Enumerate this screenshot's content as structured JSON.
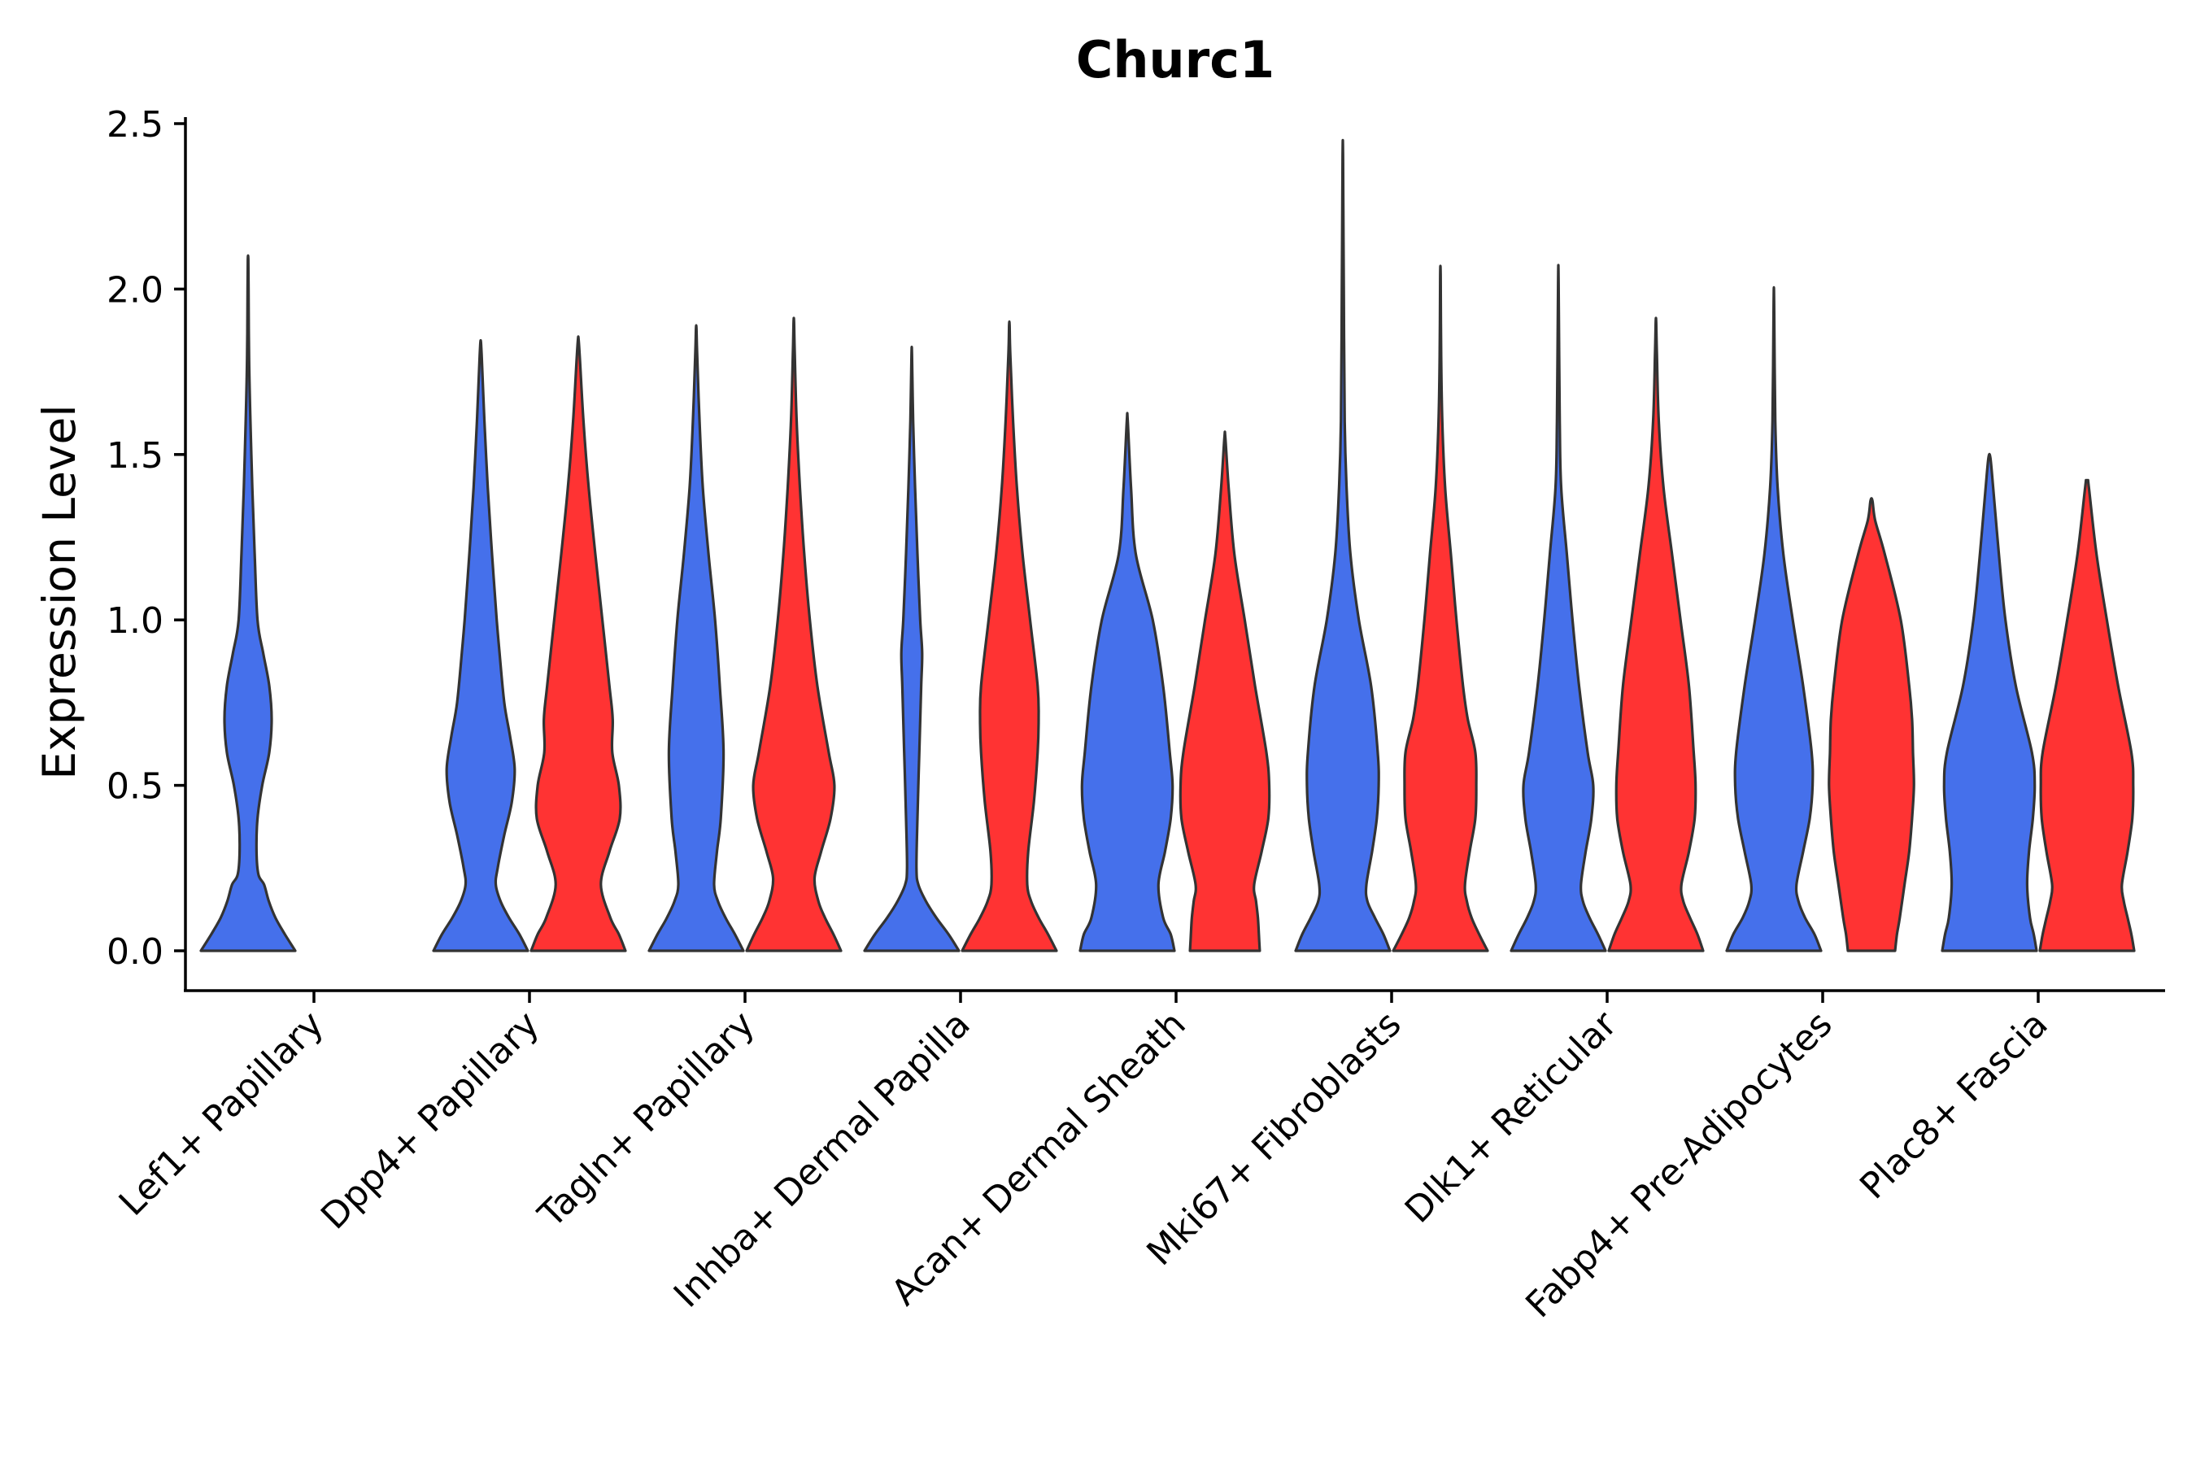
{
  "chart_data": {
    "type": "violin",
    "title": "Churc1",
    "xlabel": "",
    "ylabel": "Expression Level",
    "ylim": [
      -0.12,
      2.6
    ],
    "yticks": [
      0.0,
      0.5,
      1.0,
      1.5,
      2.0,
      2.5
    ],
    "ytick_labels": [
      "0.0",
      "0.5",
      "1.0",
      "1.5",
      "2.0",
      "2.5"
    ],
    "grid": false,
    "legend": "none",
    "split_colors": [
      "#4570EB",
      "#FF3333"
    ],
    "categories": [
      "Lef1+ Papillary",
      "Dpp4+ Papillary",
      "Tagln+ Papillary",
      "Inhba+ Dermal Papilla",
      "Acan+ Dermal Sheath",
      "Mki67+ Fibroblasts",
      "Dlk1+ Reticular",
      "Fabp4+ Pre-Adipocytes",
      "Plac8+ Fascia"
    ],
    "violins": [
      {
        "category": 0,
        "group": 0,
        "color": "#4570EB",
        "profile": [
          [
            0.0,
            1.0
          ],
          [
            0.05,
            0.78
          ],
          [
            0.1,
            0.58
          ],
          [
            0.15,
            0.44
          ],
          [
            0.2,
            0.34
          ],
          [
            0.23,
            0.22
          ],
          [
            0.3,
            0.18
          ],
          [
            0.4,
            0.2
          ],
          [
            0.5,
            0.3
          ],
          [
            0.6,
            0.45
          ],
          [
            0.7,
            0.5
          ],
          [
            0.8,
            0.45
          ],
          [
            0.9,
            0.32
          ],
          [
            1.0,
            0.2
          ],
          [
            1.2,
            0.14
          ],
          [
            1.4,
            0.09
          ],
          [
            1.6,
            0.05
          ],
          [
            1.8,
            0.02
          ],
          [
            2.0,
            0.01
          ],
          [
            2.09,
            0.005
          ]
        ]
      },
      {
        "category": 1,
        "group": 0,
        "color": "#4570EB",
        "profile": [
          [
            0.0,
            1.0
          ],
          [
            0.05,
            0.82
          ],
          [
            0.1,
            0.6
          ],
          [
            0.15,
            0.42
          ],
          [
            0.2,
            0.32
          ],
          [
            0.25,
            0.36
          ],
          [
            0.35,
            0.5
          ],
          [
            0.45,
            0.66
          ],
          [
            0.55,
            0.72
          ],
          [
            0.65,
            0.62
          ],
          [
            0.75,
            0.5
          ],
          [
            0.9,
            0.4
          ],
          [
            1.0,
            0.34
          ],
          [
            1.2,
            0.24
          ],
          [
            1.4,
            0.15
          ],
          [
            1.6,
            0.08
          ],
          [
            1.8,
            0.02
          ],
          [
            1.84,
            0.005
          ]
        ]
      },
      {
        "category": 1,
        "group": 1,
        "color": "#FF3333",
        "profile": [
          [
            0.0,
            1.0
          ],
          [
            0.05,
            0.86
          ],
          [
            0.1,
            0.68
          ],
          [
            0.2,
            0.48
          ],
          [
            0.3,
            0.66
          ],
          [
            0.4,
            0.88
          ],
          [
            0.5,
            0.86
          ],
          [
            0.6,
            0.72
          ],
          [
            0.7,
            0.73
          ],
          [
            0.8,
            0.66
          ],
          [
            1.0,
            0.51
          ],
          [
            1.2,
            0.36
          ],
          [
            1.4,
            0.22
          ],
          [
            1.6,
            0.11
          ],
          [
            1.8,
            0.03
          ],
          [
            1.85,
            0.005
          ]
        ]
      },
      {
        "category": 2,
        "group": 0,
        "color": "#4570EB",
        "profile": [
          [
            0.0,
            1.0
          ],
          [
            0.05,
            0.82
          ],
          [
            0.1,
            0.62
          ],
          [
            0.15,
            0.46
          ],
          [
            0.2,
            0.38
          ],
          [
            0.3,
            0.44
          ],
          [
            0.4,
            0.52
          ],
          [
            0.6,
            0.58
          ],
          [
            0.8,
            0.5
          ],
          [
            1.0,
            0.4
          ],
          [
            1.2,
            0.26
          ],
          [
            1.4,
            0.14
          ],
          [
            1.6,
            0.07
          ],
          [
            1.8,
            0.02
          ],
          [
            1.88,
            0.005
          ]
        ]
      },
      {
        "category": 2,
        "group": 1,
        "color": "#FF3333",
        "profile": [
          [
            0.0,
            1.0
          ],
          [
            0.05,
            0.84
          ],
          [
            0.1,
            0.66
          ],
          [
            0.15,
            0.52
          ],
          [
            0.22,
            0.44
          ],
          [
            0.3,
            0.58
          ],
          [
            0.4,
            0.78
          ],
          [
            0.5,
            0.86
          ],
          [
            0.6,
            0.74
          ],
          [
            0.8,
            0.5
          ],
          [
            1.0,
            0.34
          ],
          [
            1.2,
            0.22
          ],
          [
            1.4,
            0.13
          ],
          [
            1.6,
            0.06
          ],
          [
            1.8,
            0.02
          ],
          [
            1.9,
            0.005
          ]
        ]
      },
      {
        "category": 3,
        "group": 0,
        "color": "#4570EB",
        "profile": [
          [
            0.0,
            1.0
          ],
          [
            0.05,
            0.78
          ],
          [
            0.1,
            0.52
          ],
          [
            0.15,
            0.3
          ],
          [
            0.2,
            0.14
          ],
          [
            0.25,
            0.1
          ],
          [
            0.4,
            0.12
          ],
          [
            0.6,
            0.16
          ],
          [
            0.8,
            0.2
          ],
          [
            0.9,
            0.22
          ],
          [
            1.0,
            0.18
          ],
          [
            1.2,
            0.12
          ],
          [
            1.4,
            0.07
          ],
          [
            1.6,
            0.03
          ],
          [
            1.8,
            0.005
          ]
        ]
      },
      {
        "category": 3,
        "group": 1,
        "color": "#FF3333",
        "profile": [
          [
            0.0,
            1.0
          ],
          [
            0.05,
            0.82
          ],
          [
            0.1,
            0.62
          ],
          [
            0.15,
            0.46
          ],
          [
            0.2,
            0.38
          ],
          [
            0.3,
            0.4
          ],
          [
            0.45,
            0.52
          ],
          [
            0.6,
            0.6
          ],
          [
            0.7,
            0.62
          ],
          [
            0.8,
            0.6
          ],
          [
            1.0,
            0.44
          ],
          [
            1.2,
            0.28
          ],
          [
            1.4,
            0.16
          ],
          [
            1.6,
            0.08
          ],
          [
            1.8,
            0.02
          ],
          [
            1.89,
            0.005
          ]
        ]
      },
      {
        "category": 4,
        "group": 0,
        "color": "#4570EB",
        "profile": [
          [
            0.0,
            1.0
          ],
          [
            0.05,
            0.92
          ],
          [
            0.1,
            0.76
          ],
          [
            0.2,
            0.66
          ],
          [
            0.3,
            0.8
          ],
          [
            0.4,
            0.92
          ],
          [
            0.5,
            0.96
          ],
          [
            0.6,
            0.9
          ],
          [
            0.8,
            0.76
          ],
          [
            1.0,
            0.54
          ],
          [
            1.2,
            0.18
          ],
          [
            1.4,
            0.08
          ],
          [
            1.6,
            0.01
          ]
        ]
      },
      {
        "category": 4,
        "group": 1,
        "color": "#FF3333",
        "profile": [
          [
            0.0,
            0.74
          ],
          [
            0.05,
            0.72
          ],
          [
            0.1,
            0.7
          ],
          [
            0.15,
            0.66
          ],
          [
            0.2,
            0.62
          ],
          [
            0.3,
            0.78
          ],
          [
            0.4,
            0.92
          ],
          [
            0.5,
            0.94
          ],
          [
            0.6,
            0.88
          ],
          [
            0.8,
            0.64
          ],
          [
            1.0,
            0.42
          ],
          [
            1.2,
            0.2
          ],
          [
            1.4,
            0.08
          ],
          [
            1.55,
            0.01
          ]
        ]
      },
      {
        "category": 5,
        "group": 0,
        "color": "#4570EB",
        "profile": [
          [
            0.0,
            1.0
          ],
          [
            0.05,
            0.86
          ],
          [
            0.1,
            0.68
          ],
          [
            0.15,
            0.52
          ],
          [
            0.2,
            0.5
          ],
          [
            0.3,
            0.62
          ],
          [
            0.4,
            0.72
          ],
          [
            0.5,
            0.76
          ],
          [
            0.6,
            0.74
          ],
          [
            0.8,
            0.6
          ],
          [
            1.0,
            0.34
          ],
          [
            1.2,
            0.16
          ],
          [
            1.4,
            0.08
          ],
          [
            1.6,
            0.04
          ],
          [
            2.0,
            0.02
          ],
          [
            2.4,
            0.005
          ]
        ]
      },
      {
        "category": 5,
        "group": 1,
        "color": "#FF3333",
        "profile": [
          [
            0.0,
            1.0
          ],
          [
            0.05,
            0.82
          ],
          [
            0.1,
            0.66
          ],
          [
            0.15,
            0.56
          ],
          [
            0.2,
            0.52
          ],
          [
            0.3,
            0.62
          ],
          [
            0.4,
            0.74
          ],
          [
            0.5,
            0.76
          ],
          [
            0.6,
            0.74
          ],
          [
            0.7,
            0.58
          ],
          [
            0.8,
            0.48
          ],
          [
            1.0,
            0.34
          ],
          [
            1.2,
            0.22
          ],
          [
            1.4,
            0.1
          ],
          [
            1.6,
            0.04
          ],
          [
            1.8,
            0.015
          ],
          [
            2.04,
            0.005
          ]
        ]
      },
      {
        "category": 6,
        "group": 0,
        "color": "#4570EB",
        "profile": [
          [
            0.0,
            1.0
          ],
          [
            0.05,
            0.84
          ],
          [
            0.1,
            0.66
          ],
          [
            0.15,
            0.52
          ],
          [
            0.2,
            0.48
          ],
          [
            0.3,
            0.58
          ],
          [
            0.4,
            0.7
          ],
          [
            0.5,
            0.74
          ],
          [
            0.6,
            0.62
          ],
          [
            0.8,
            0.44
          ],
          [
            1.0,
            0.3
          ],
          [
            1.2,
            0.18
          ],
          [
            1.4,
            0.06
          ],
          [
            1.6,
            0.03
          ],
          [
            2.02,
            0.005
          ]
        ]
      },
      {
        "category": 6,
        "group": 1,
        "color": "#FF3333",
        "profile": [
          [
            0.0,
            1.0
          ],
          [
            0.05,
            0.88
          ],
          [
            0.1,
            0.72
          ],
          [
            0.15,
            0.58
          ],
          [
            0.2,
            0.54
          ],
          [
            0.3,
            0.7
          ],
          [
            0.4,
            0.82
          ],
          [
            0.5,
            0.84
          ],
          [
            0.6,
            0.8
          ],
          [
            0.8,
            0.7
          ],
          [
            1.0,
            0.52
          ],
          [
            1.2,
            0.34
          ],
          [
            1.4,
            0.16
          ],
          [
            1.6,
            0.06
          ],
          [
            1.8,
            0.02
          ],
          [
            1.9,
            0.005
          ]
        ]
      },
      {
        "category": 7,
        "group": 0,
        "color": "#4570EB",
        "profile": [
          [
            0.0,
            1.0
          ],
          [
            0.05,
            0.86
          ],
          [
            0.1,
            0.66
          ],
          [
            0.15,
            0.52
          ],
          [
            0.2,
            0.48
          ],
          [
            0.3,
            0.62
          ],
          [
            0.4,
            0.76
          ],
          [
            0.5,
            0.82
          ],
          [
            0.6,
            0.8
          ],
          [
            0.8,
            0.62
          ],
          [
            1.0,
            0.4
          ],
          [
            1.2,
            0.2
          ],
          [
            1.4,
            0.08
          ],
          [
            1.6,
            0.03
          ],
          [
            1.96,
            0.005
          ]
        ]
      },
      {
        "category": 7,
        "group": 1,
        "color": "#FF3333",
        "profile": [
          [
            0.0,
            0.5
          ],
          [
            0.05,
            0.54
          ],
          [
            0.1,
            0.6
          ],
          [
            0.2,
            0.7
          ],
          [
            0.3,
            0.8
          ],
          [
            0.4,
            0.86
          ],
          [
            0.5,
            0.9
          ],
          [
            0.6,
            0.88
          ],
          [
            0.7,
            0.86
          ],
          [
            0.8,
            0.8
          ],
          [
            1.0,
            0.62
          ],
          [
            1.2,
            0.28
          ],
          [
            1.3,
            0.08
          ],
          [
            1.36,
            0.02
          ]
        ]
      },
      {
        "category": 8,
        "group": 0,
        "color": "#4570EB",
        "profile": [
          [
            0.0,
            1.0
          ],
          [
            0.05,
            0.94
          ],
          [
            0.1,
            0.86
          ],
          [
            0.2,
            0.8
          ],
          [
            0.3,
            0.84
          ],
          [
            0.4,
            0.92
          ],
          [
            0.5,
            0.96
          ],
          [
            0.6,
            0.9
          ],
          [
            0.8,
            0.56
          ],
          [
            1.0,
            0.34
          ],
          [
            1.2,
            0.2
          ],
          [
            1.4,
            0.08
          ],
          [
            1.49,
            0.02
          ]
        ]
      },
      {
        "category": 8,
        "group": 1,
        "color": "#FF3333",
        "profile": [
          [
            0.0,
            1.0
          ],
          [
            0.05,
            0.94
          ],
          [
            0.1,
            0.86
          ],
          [
            0.15,
            0.78
          ],
          [
            0.2,
            0.74
          ],
          [
            0.3,
            0.86
          ],
          [
            0.4,
            0.96
          ],
          [
            0.5,
            0.98
          ],
          [
            0.6,
            0.94
          ],
          [
            0.8,
            0.66
          ],
          [
            1.0,
            0.42
          ],
          [
            1.2,
            0.2
          ],
          [
            1.4,
            0.04
          ],
          [
            1.42,
            0.02
          ]
        ]
      }
    ]
  }
}
